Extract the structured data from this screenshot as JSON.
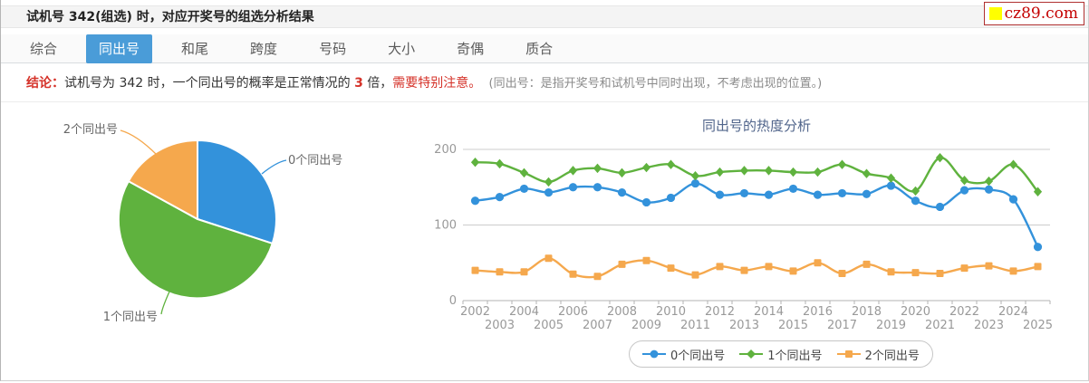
{
  "header": {
    "title": "试机号 342(组选) 时，对应开奖号的组选分析结果"
  },
  "logo": {
    "text": "cz89.com",
    "icon_color": "#ffff00",
    "text_color": "#c40000",
    "border_color": "#b03030"
  },
  "tabs": [
    {
      "label": "综合",
      "active": false
    },
    {
      "label": "同出号",
      "active": true
    },
    {
      "label": "和尾",
      "active": false
    },
    {
      "label": "跨度",
      "active": false
    },
    {
      "label": "号码",
      "active": false
    },
    {
      "label": "大小",
      "active": false
    },
    {
      "label": "奇偶",
      "active": false
    },
    {
      "label": "质合",
      "active": false
    }
  ],
  "conclusion": {
    "prefix": "结论：",
    "text_before": "试机号为 342 时，一个同出号的概率是正常情况的 ",
    "highlight": "3",
    "text_after": " 倍，",
    "warning": "需要特别注意。",
    "note": "  (同出号：是指开奖号和试机号中同时出现，不考虑出现的位置。)"
  },
  "colors": {
    "tab_active_bg": "#4A9CD8",
    "emphasis_red": "#D5332A",
    "note_gray": "#8a8a8a",
    "chart_title": "#51658B",
    "axis_label": "#999999",
    "series_blue": "#3392DB",
    "series_green": "#5FB23E",
    "series_orange": "#F5A84D"
  },
  "chart_data": [
    {
      "type": "pie",
      "title": "",
      "slices": [
        {
          "label": "0个同出号",
          "value": 30,
          "color": "#3392DB"
        },
        {
          "label": "1个同出号",
          "value": 53,
          "color": "#5FB23E"
        },
        {
          "label": "2个同出号",
          "value": 17,
          "color": "#F5A84D"
        }
      ],
      "unit": "percent",
      "start_angle": "top",
      "direction": "clockwise"
    },
    {
      "type": "line",
      "title": "同出号的热度分析",
      "categories": [
        2002,
        2003,
        2004,
        2005,
        2006,
        2007,
        2008,
        2009,
        2010,
        2011,
        2012,
        2013,
        2014,
        2015,
        2016,
        2017,
        2018,
        2019,
        2020,
        2021,
        2022,
        2023,
        2024,
        2025
      ],
      "series": [
        {
          "name": "0个同出号",
          "color": "#3392DB",
          "marker": "circle",
          "values": [
            132,
            137,
            148,
            143,
            150,
            150,
            143,
            130,
            136,
            155,
            140,
            142,
            140,
            148,
            140,
            142,
            141,
            152,
            132,
            124,
            146,
            147,
            134,
            71
          ]
        },
        {
          "name": "1个同出号",
          "color": "#5FB23E",
          "marker": "diamond",
          "values": [
            183,
            181,
            169,
            157,
            172,
            175,
            169,
            176,
            180,
            165,
            170,
            172,
            172,
            170,
            170,
            180,
            168,
            162,
            145,
            189,
            159,
            158,
            180,
            144
          ]
        },
        {
          "name": "2个同出号",
          "color": "#F5A84D",
          "marker": "square",
          "values": [
            40,
            38,
            38,
            56,
            35,
            32,
            48,
            53,
            43,
            34,
            45,
            40,
            45,
            39,
            50,
            36,
            48,
            38,
            37,
            36,
            43,
            46,
            39,
            45
          ]
        }
      ],
      "ylim": [
        0,
        200
      ],
      "yticks": [
        0,
        100,
        200
      ],
      "grid": true,
      "legend_position": "bottom",
      "x_label_stagger": true
    }
  ]
}
